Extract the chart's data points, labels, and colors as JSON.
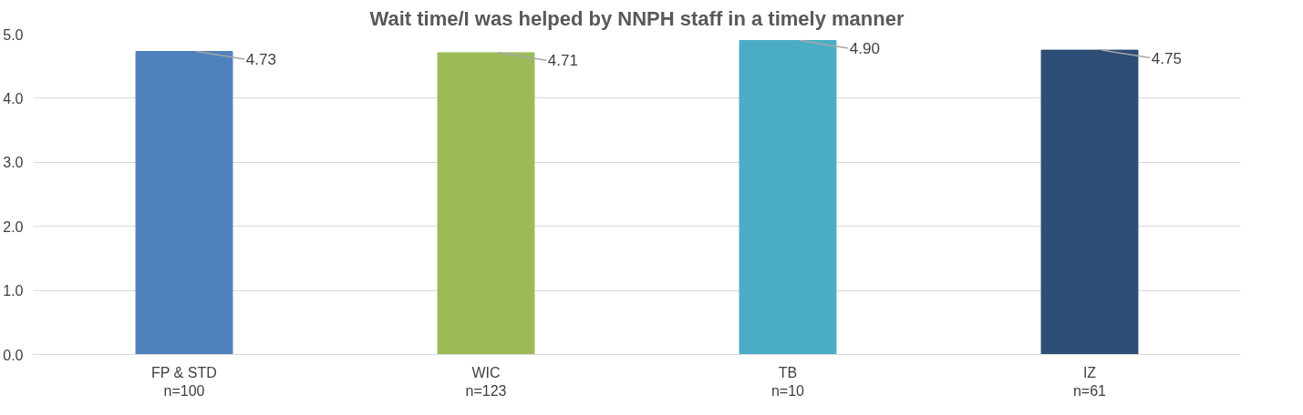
{
  "chart_data": {
    "type": "bar",
    "title": "Wait time/I was helped by NNPH staff in a timely manner",
    "categories": [
      "FP & STD\nn=100",
      "WIC\nn=123",
      "TB\nn=10",
      "IZ\nn=61"
    ],
    "values": [
      4.73,
      4.71,
      4.9,
      4.75
    ],
    "colors": [
      "#4f81bd",
      "#9bbb59",
      "#4bacc6",
      "#2c4d75"
    ],
    "ylim": [
      0,
      5
    ],
    "yticks": [
      {
        "value": 0,
        "label": "0.0"
      },
      {
        "value": 1,
        "label": "1.0"
      },
      {
        "value": 2,
        "label": "2.0"
      },
      {
        "value": 3,
        "label": "3.0"
      },
      {
        "value": 4,
        "label": "4.0"
      },
      {
        "value": 5,
        "label": "5.0"
      }
    ],
    "value_labels": [
      "4.73",
      "4.71",
      "4.90",
      "4.75"
    ],
    "grid": "y"
  }
}
